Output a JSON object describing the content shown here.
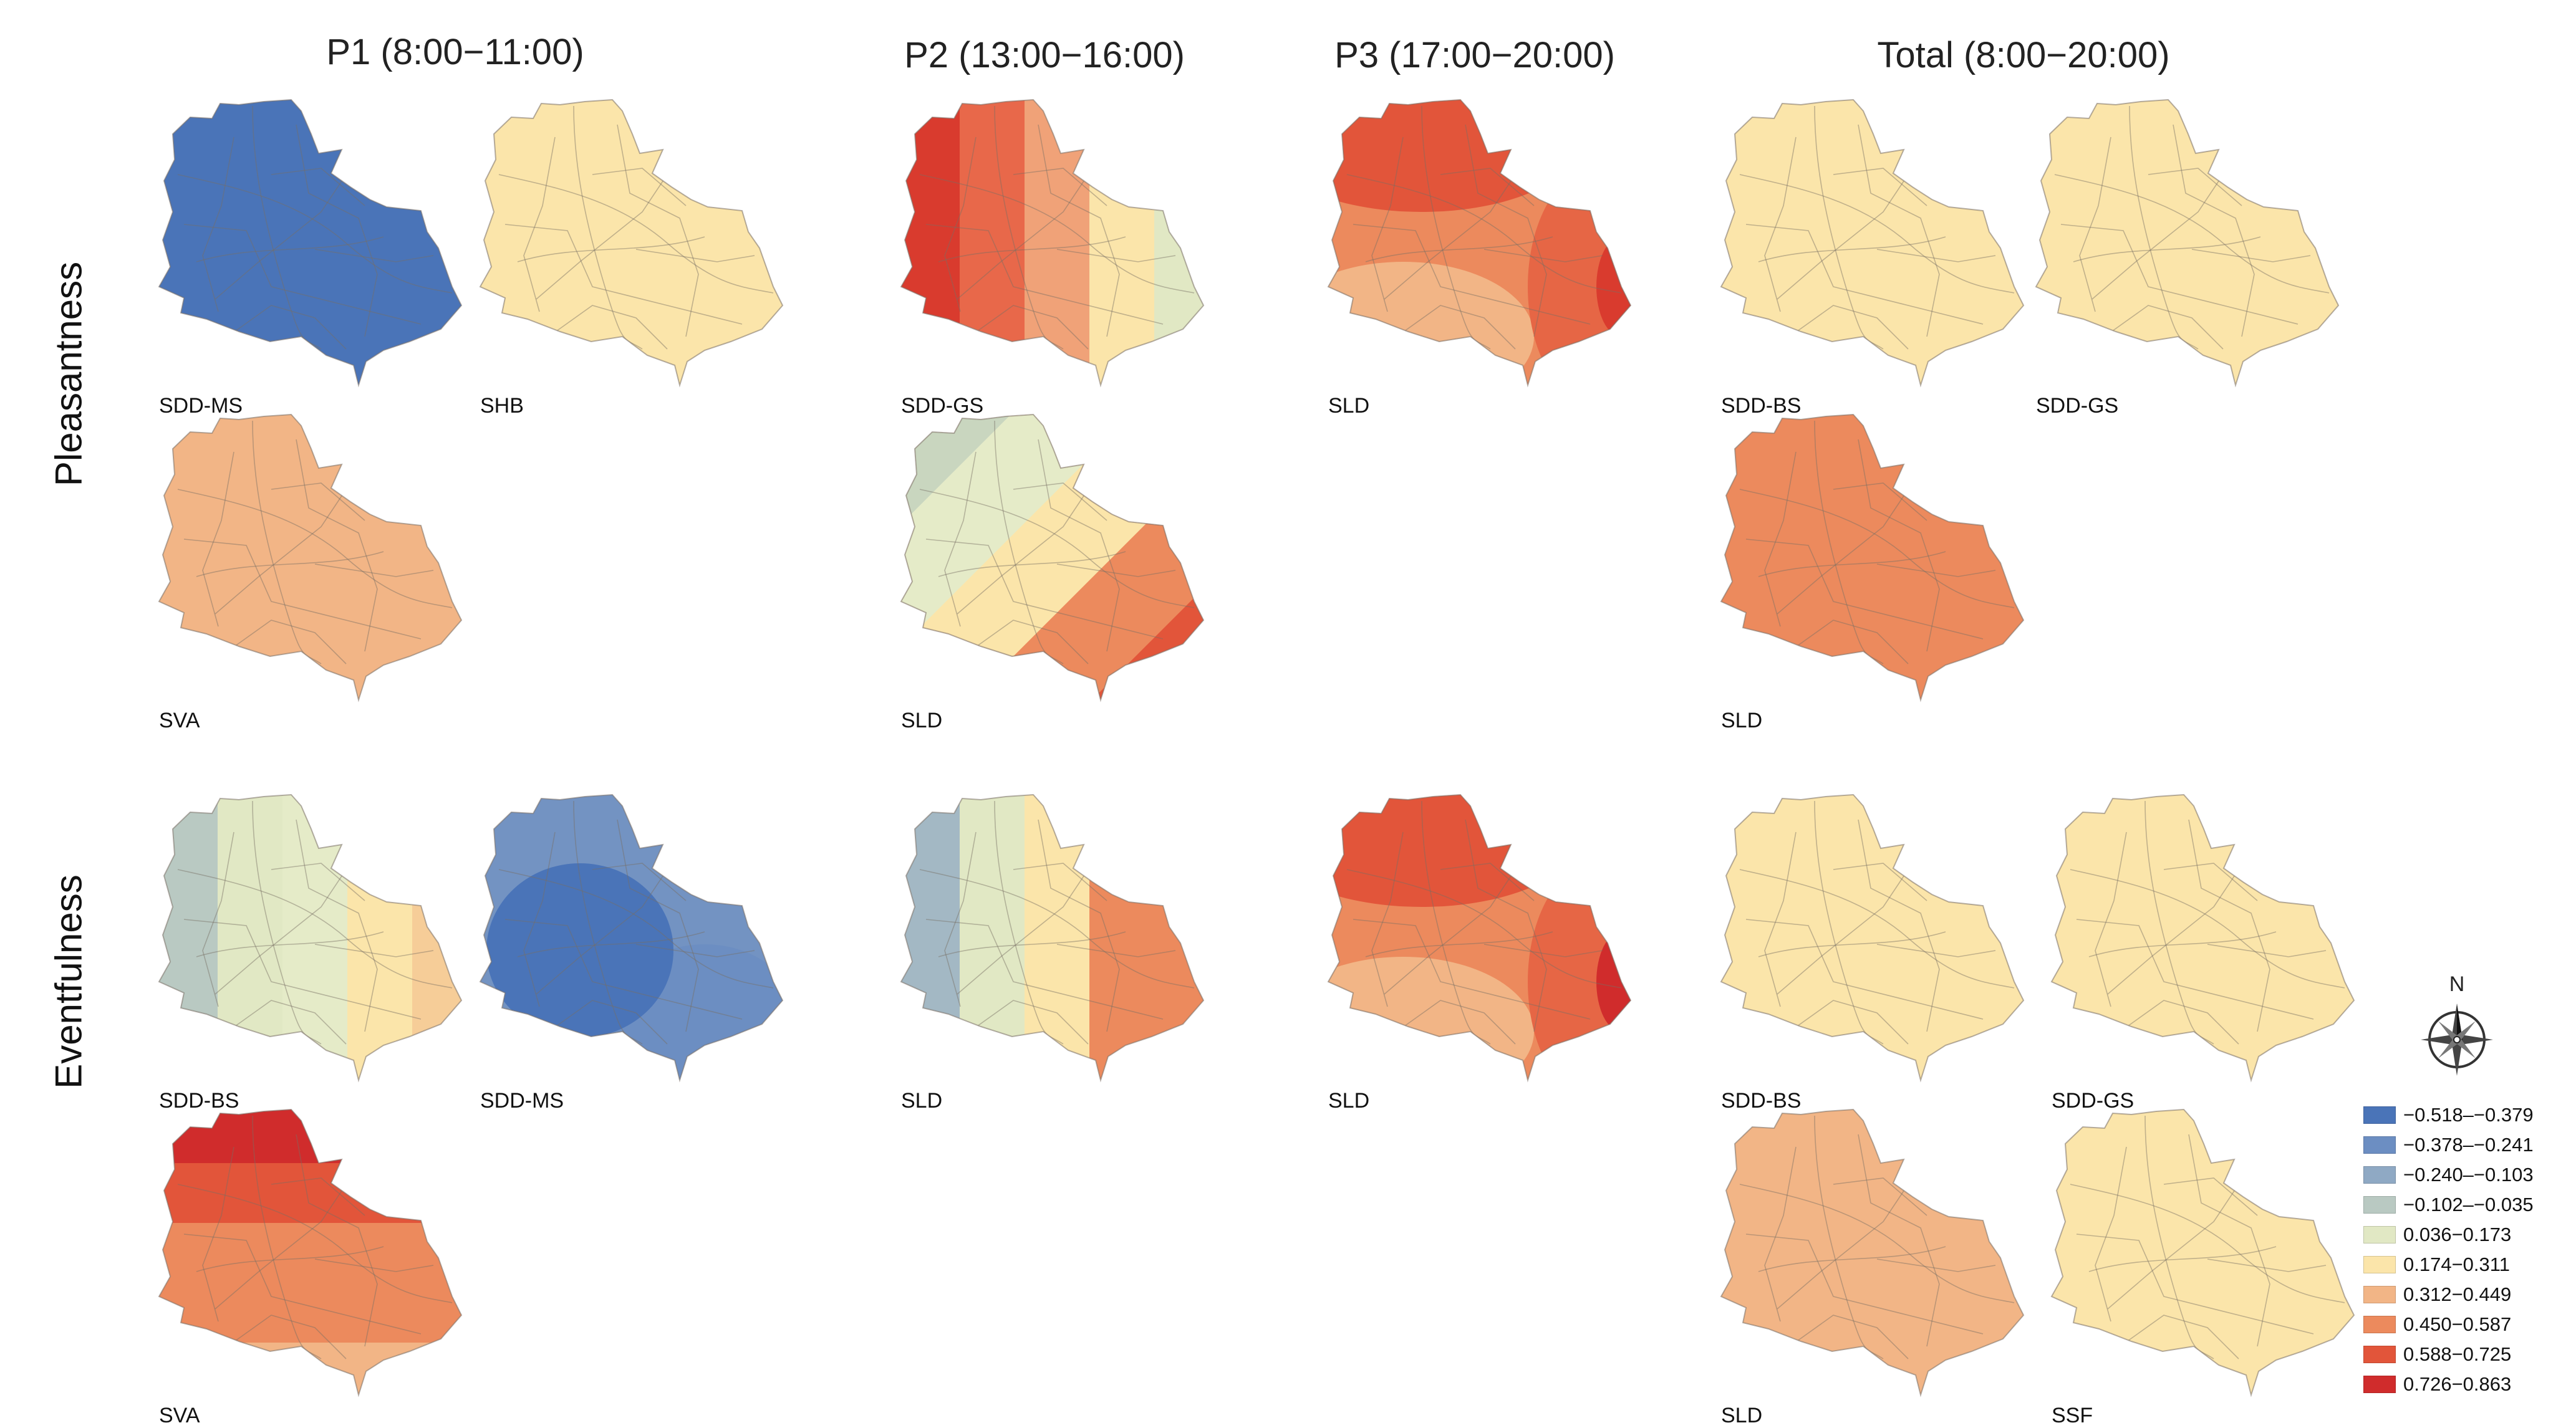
{
  "columns": [
    {
      "title": "P1 (8:00−11:00)"
    },
    {
      "title": "P2 (13:00−16:00)"
    },
    {
      "title": "P3 (17:00−20:00)"
    },
    {
      "title": "Total (8:00−20:00)"
    }
  ],
  "rows": [
    {
      "title": "Pleasantness"
    },
    {
      "title": "Eventfulness"
    }
  ],
  "panels": [
    {
      "label": "SDD-MS",
      "row": "Pleasantness",
      "column": "P1",
      "fill": "uniform",
      "zones": [
        "#4a74b8"
      ]
    },
    {
      "label": "SHB",
      "row": "Pleasantness",
      "column": "P1",
      "fill": "uniform",
      "zones": [
        "#fbe5aa"
      ]
    },
    {
      "label": "SVA",
      "row": "Pleasantness",
      "column": "P1",
      "fill": "uniform",
      "zones": [
        "#f2b586"
      ]
    },
    {
      "label": "SDD-GS",
      "row": "Pleasantness",
      "column": "P2",
      "fill": "gradient-west-to-east",
      "zones": [
        "#d93b2e",
        "#e8684a",
        "#f0a278",
        "#fbe5aa",
        "#e1e8c4"
      ]
    },
    {
      "label": "SLD",
      "row": "Pleasantness",
      "column": "P2",
      "fill": "gradient-northwest-to-southeast",
      "zones": [
        "#c9d6bf",
        "#e5ebc8",
        "#fbe5aa",
        "#ec8a5d",
        "#e2553a"
      ]
    },
    {
      "label": "SLD",
      "row": "Pleasantness",
      "column": "P3",
      "fill": "gradient-north-to-east",
      "zones": [
        "#e2553a",
        "#ec8a5d",
        "#f2b586",
        "#e66645",
        "#d93b2e"
      ]
    },
    {
      "label": "SDD-BS",
      "row": "Pleasantness",
      "column": "Total",
      "fill": "uniform",
      "zones": [
        "#fbe5aa"
      ]
    },
    {
      "label": "SDD-GS",
      "row": "Pleasantness",
      "column": "Total",
      "fill": "uniform",
      "zones": [
        "#fbe5aa"
      ]
    },
    {
      "label": "SLD",
      "row": "Pleasantness",
      "column": "Total",
      "fill": "uniform",
      "zones": [
        "#ec8a5d"
      ]
    },
    {
      "label": "SDD-BS",
      "row": "Eventfulness",
      "column": "P1",
      "fill": "gradient-west-to-east",
      "zones": [
        "#b9c9c2",
        "#e1e8c4",
        "#e5ebc8",
        "#fbe5aa",
        "#f6cd98"
      ]
    },
    {
      "label": "SDD-MS",
      "row": "Eventfulness",
      "column": "P1",
      "fill": "core-and-rim",
      "zones": [
        "#7393c2",
        "#4a74b8",
        "#6c8ec2"
      ]
    },
    {
      "label": "SVA",
      "row": "Eventfulness",
      "column": "P1",
      "fill": "gradient-north-to-south",
      "zones": [
        "#d02c2c",
        "#e2553a",
        "#ec8a5d",
        "#ec8a5d",
        "#f2b586"
      ]
    },
    {
      "label": "SLD",
      "row": "Eventfulness",
      "column": "P2",
      "fill": "gradient-west-to-east",
      "zones": [
        "#a3b8c4",
        "#e1e8c4",
        "#fbe5aa",
        "#ec8a5d",
        "#ec8a5d"
      ]
    },
    {
      "label": "SLD",
      "row": "Eventfulness",
      "column": "P3",
      "fill": "gradient-north-to-east",
      "zones": [
        "#e2553a",
        "#ec8a5d",
        "#f2b586",
        "#e66645",
        "#d02c2c"
      ]
    },
    {
      "label": "SDD-BS",
      "row": "Eventfulness",
      "column": "Total",
      "fill": "uniform",
      "zones": [
        "#fbe5aa"
      ]
    },
    {
      "label": "SDD-GS",
      "row": "Eventfulness",
      "column": "Total",
      "fill": "uniform",
      "zones": [
        "#fbe5aa"
      ]
    },
    {
      "label": "SLD",
      "row": "Eventfulness",
      "column": "Total",
      "fill": "uniform",
      "zones": [
        "#f2b586"
      ]
    },
    {
      "label": "SSF",
      "row": "Eventfulness",
      "column": "Total",
      "fill": "uniform",
      "zones": [
        "#fbe5aa"
      ]
    }
  ],
  "compass": {
    "north_label": "N",
    "icon": "compass-rose-icon"
  },
  "legend": [
    {
      "label": "−0.518–−0.379",
      "color": "#4a74b8"
    },
    {
      "label": "−0.378–−0.241",
      "color": "#6c8ec2"
    },
    {
      "label": "−0.240–−0.103",
      "color": "#8fa9c4"
    },
    {
      "label": "−0.102–−0.035",
      "color": "#b9c9c2"
    },
    {
      "label": "0.036−0.173",
      "color": "#e1e8c4"
    },
    {
      "label": "0.174−0.311",
      "color": "#fbe5aa"
    },
    {
      "label": "0.312−0.449",
      "color": "#f2b586"
    },
    {
      "label": "0.450−0.587",
      "color": "#ec8a5d"
    },
    {
      "label": "0.588−0.725",
      "color": "#e2553a"
    },
    {
      "label": "0.726−0.863",
      "color": "#d02c2c"
    }
  ]
}
